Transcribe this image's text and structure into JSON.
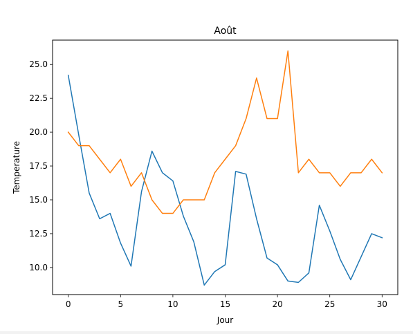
{
  "chart_data": {
    "type": "line",
    "title": "Août",
    "xlabel": "Jour",
    "ylabel": "Temperature",
    "xlim": [
      -1.5,
      31.5
    ],
    "ylim": [
      8.0,
      26.8
    ],
    "xticks": [
      0,
      5,
      10,
      15,
      20,
      25,
      30
    ],
    "yticks": [
      10.0,
      12.5,
      15.0,
      17.5,
      20.0,
      22.5,
      25.0
    ],
    "xtick_labels": [
      "0",
      "5",
      "10",
      "15",
      "20",
      "25",
      "30"
    ],
    "ytick_labels": [
      "10.0",
      "12.5",
      "15.0",
      "17.5",
      "20.0",
      "22.5",
      "25.0"
    ],
    "grid": false,
    "legend": "none",
    "x": [
      0,
      1,
      2,
      3,
      4,
      5,
      6,
      7,
      8,
      9,
      10,
      11,
      12,
      13,
      14,
      15,
      16,
      17,
      18,
      19,
      20,
      21,
      22,
      23,
      24,
      25,
      26,
      27,
      28,
      29,
      30
    ],
    "series": [
      {
        "color": "#1f77b4",
        "values": [
          24.2,
          19.8,
          15.5,
          13.6,
          14.0,
          11.8,
          10.1,
          15.6,
          18.6,
          17.0,
          16.4,
          13.8,
          11.9,
          8.7,
          9.7,
          10.2,
          17.1,
          16.9,
          13.6,
          10.7,
          10.2,
          9.0,
          8.9,
          9.6,
          14.6,
          12.7,
          10.6,
          9.1,
          10.8,
          12.5,
          12.2
        ]
      },
      {
        "color": "#ff7f0e",
        "values": [
          20.0,
          19.0,
          19.0,
          18.0,
          17.0,
          18.0,
          16.0,
          17.0,
          15.0,
          14.0,
          14.0,
          15.0,
          15.0,
          15.0,
          17.0,
          18.0,
          19.0,
          21.0,
          24.0,
          21.0,
          21.0,
          26.0,
          17.0,
          18.0,
          17.0,
          17.0,
          16.0,
          17.0,
          17.0,
          18.0,
          17.0
        ]
      }
    ]
  }
}
